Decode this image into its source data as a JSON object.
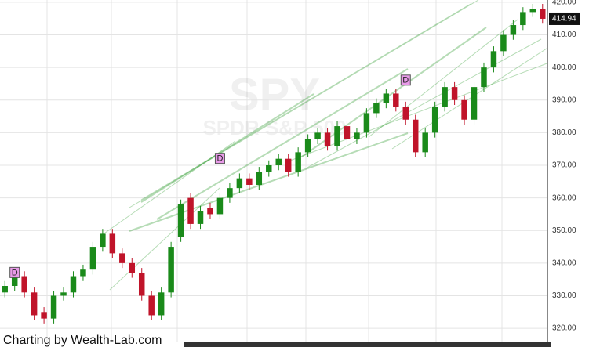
{
  "chart_data": {
    "type": "candlestick",
    "watermark": "SPY",
    "watermark_subtitle": "SPDR S&P 500",
    "footer": "Charting by Wealth-Lab.com",
    "open": [
      331,
      333,
      336,
      331,
      325,
      323,
      330,
      331,
      336,
      338,
      345,
      349,
      343,
      340,
      337,
      330,
      324,
      331,
      348,
      360,
      352,
      357,
      355,
      360,
      363,
      366,
      364,
      368,
      370,
      372,
      368,
      374,
      378,
      380,
      376,
      382,
      378,
      380,
      386,
      389,
      392,
      388,
      384,
      374,
      380,
      388,
      394,
      390,
      384,
      394,
      400,
      405,
      410,
      413,
      417,
      418
    ],
    "high": [
      334.5,
      337.5,
      337.5,
      332.5,
      326.5,
      331.5,
      332.5,
      337.5,
      339.5,
      346.5,
      350.5,
      350.5,
      344.5,
      341.5,
      338.5,
      331.5,
      332.5,
      346.5,
      359.5,
      361.5,
      357.5,
      358.5,
      361.5,
      364.5,
      367.5,
      367.5,
      369.5,
      371.5,
      373.5,
      373.5,
      375.5,
      379.5,
      381.5,
      381.5,
      383.5,
      383.5,
      381.5,
      387.5,
      390.5,
      393.5,
      393.5,
      389.5,
      385.5,
      381.5,
      389.5,
      395.5,
      395.5,
      391.5,
      395.5,
      401.5,
      406.5,
      411.5,
      414.5,
      418.5,
      419.5,
      419.5
    ],
    "low": [
      329.5,
      331.5,
      329.5,
      322.5,
      321.5,
      321.5,
      328.5,
      329.5,
      334.5,
      336.5,
      343.5,
      341.5,
      338.5,
      335.5,
      328.5,
      322.5,
      322.5,
      329.5,
      346.5,
      350.5,
      350.5,
      353.5,
      353.5,
      358.5,
      361.5,
      362.5,
      362.5,
      366.5,
      368.5,
      366.5,
      366.5,
      372.5,
      376.5,
      374.5,
      374.5,
      376.5,
      376.5,
      378.5,
      384.5,
      387.5,
      386.5,
      382.5,
      372.5,
      372.5,
      378.5,
      386.5,
      388.5,
      382.5,
      382.5,
      392.5,
      398.5,
      403.5,
      408.5,
      411.5,
      415.5,
      413.44
    ],
    "close": [
      333,
      336,
      331,
      324,
      323,
      330,
      331,
      336,
      338,
      345,
      349,
      343,
      340,
      337,
      330,
      324,
      331,
      345,
      358,
      352,
      356,
      355,
      360,
      363,
      366,
      364,
      368,
      370,
      372,
      368,
      374,
      378,
      380,
      376,
      382,
      378,
      380,
      386,
      389,
      392,
      388,
      384,
      374,
      380,
      388,
      394,
      390,
      384,
      394,
      400,
      405,
      410,
      413,
      417,
      418,
      414.94
    ],
    "up_color": "#1a8a1a",
    "down_color": "#c0142a",
    "markers": [
      {
        "label": "D",
        "index": 1,
        "value": 337
      },
      {
        "label": "D",
        "index": 22,
        "value": 372
      },
      {
        "label": "D",
        "index": 41,
        "value": 396
      }
    ],
    "ylim": [
      315.7,
      420.7
    ],
    "yticks": [
      {
        "value": 320,
        "label": "320.00"
      },
      {
        "value": 330,
        "label": "330.00"
      },
      {
        "value": 340,
        "label": "340.00"
      },
      {
        "value": 350,
        "label": "350.00"
      },
      {
        "value": 360,
        "label": "360.00"
      },
      {
        "value": 370,
        "label": "370.00"
      },
      {
        "value": 380,
        "label": "380.00"
      },
      {
        "value": 390,
        "label": "390.00"
      },
      {
        "value": 400,
        "label": "400.00"
      },
      {
        "value": 410,
        "label": "410.00"
      },
      {
        "value": 420,
        "label": "420.00"
      }
    ],
    "grid": true
  }
}
